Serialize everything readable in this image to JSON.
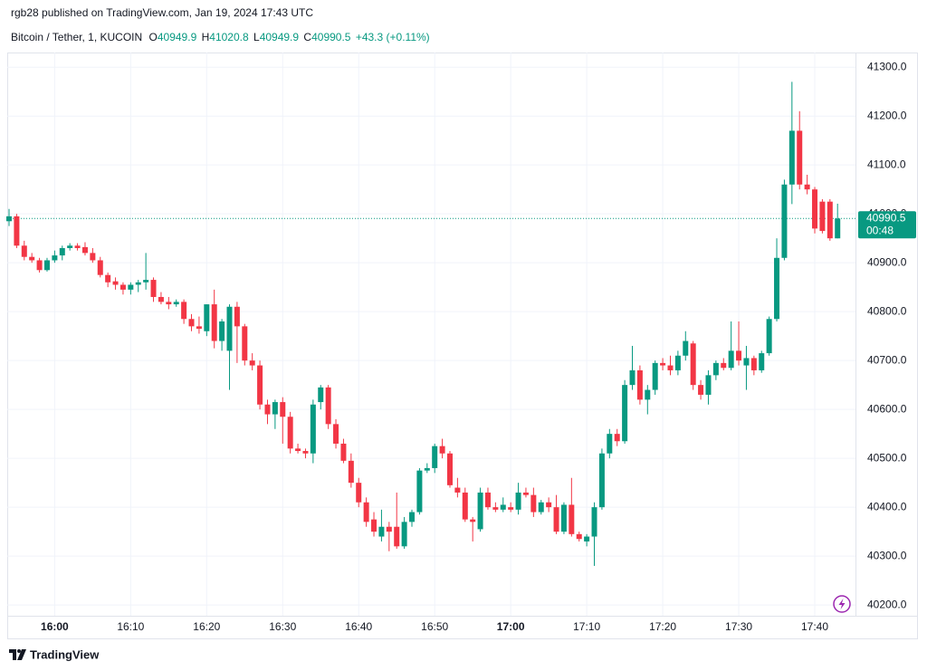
{
  "chart_data": {
    "type": "candlestick",
    "title": "rgb28 published on TradingView.com, Jan 19, 2024 17:43 UTC",
    "symbol": "Bitcoin / Tether, 1, KUCOIN",
    "ohlc_labels": [
      "O",
      "H",
      "L",
      "C"
    ],
    "change_label": "+43.3 (+0.11%)",
    "countdown": "00:48",
    "brand": "TradingView",
    "up_color": "#089981",
    "down_color": "#f23645",
    "grid": true,
    "x": [
      "15:54",
      "15:55",
      "15:56",
      "15:57",
      "15:58",
      "15:59",
      "16:00",
      "16:01",
      "16:02",
      "16:03",
      "16:04",
      "16:05",
      "16:06",
      "16:07",
      "16:08",
      "16:09",
      "16:10",
      "16:11",
      "16:12",
      "16:13",
      "16:14",
      "16:15",
      "16:16",
      "16:17",
      "16:18",
      "16:19",
      "16:20",
      "16:21",
      "16:22",
      "16:23",
      "16:24",
      "16:25",
      "16:26",
      "16:27",
      "16:28",
      "16:29",
      "16:30",
      "16:31",
      "16:32",
      "16:33",
      "16:34",
      "16:35",
      "16:36",
      "16:37",
      "16:38",
      "16:39",
      "16:40",
      "16:41",
      "16:42",
      "16:43",
      "16:44",
      "16:45",
      "16:46",
      "16:47",
      "16:48",
      "16:49",
      "16:50",
      "16:51",
      "16:52",
      "16:53",
      "16:54",
      "16:55",
      "16:56",
      "16:57",
      "16:58",
      "16:59",
      "17:00",
      "17:01",
      "17:02",
      "17:03",
      "17:04",
      "17:05",
      "17:06",
      "17:07",
      "17:08",
      "17:09",
      "17:10",
      "17:11",
      "17:12",
      "17:13",
      "17:14",
      "17:15",
      "17:16",
      "17:17",
      "17:18",
      "17:19",
      "17:20",
      "17:21",
      "17:22",
      "17:23",
      "17:24",
      "17:25",
      "17:26",
      "17:27",
      "17:28",
      "17:29",
      "17:30",
      "17:31",
      "17:32",
      "17:33",
      "17:34",
      "17:35",
      "17:36",
      "17:37",
      "17:38",
      "17:39",
      "17:40",
      "17:41",
      "17:42",
      "17:43"
    ],
    "open": [
      40985,
      40995,
      40935,
      40912,
      40905,
      40885,
      40905,
      40915,
      40930,
      40935,
      40932,
      40920,
      40905,
      40875,
      40862,
      40855,
      40845,
      40855,
      40860,
      40865,
      40830,
      40820,
      40815,
      40820,
      40785,
      40770,
      40760,
      40815,
      40740,
      40720,
      40810,
      40770,
      40700,
      40690,
      40610,
      40590,
      40615,
      40585,
      40520,
      40515,
      40510,
      40615,
      40645,
      40570,
      40530,
      40495,
      40450,
      40410,
      40375,
      40340,
      40360,
      40360,
      40320,
      40370,
      40390,
      40475,
      40480,
      40525,
      40510,
      40440,
      40430,
      40375,
      40355,
      40430,
      40400,
      40395,
      40400,
      40395,
      40430,
      40425,
      40390,
      40410,
      40400,
      40350,
      40405,
      40345,
      40330,
      40340,
      40400,
      40510,
      40550,
      40535,
      40650,
      40680,
      40620,
      40640,
      40695,
      40690,
      40680,
      40710,
      40735,
      40650,
      40630,
      40670,
      40695,
      40685,
      40720,
      40690,
      40705,
      40680,
      40715,
      40785,
      40910,
      41060,
      41170,
      41060,
      41050,
      41025,
      41025,
      40949.9
    ],
    "high": [
      41010,
      41000,
      40945,
      40920,
      40910,
      40910,
      40925,
      40935,
      40940,
      40940,
      40942,
      40930,
      40912,
      40880,
      40870,
      40860,
      40860,
      40865,
      40920,
      40870,
      40840,
      40830,
      40825,
      40825,
      40795,
      40790,
      40815,
      40845,
      40785,
      40815,
      40820,
      40775,
      40715,
      40700,
      40620,
      40620,
      40625,
      40595,
      40530,
      40520,
      40620,
      40650,
      40650,
      40580,
      40540,
      40510,
      40460,
      40420,
      40390,
      40395,
      40370,
      40430,
      40380,
      40395,
      40480,
      40490,
      40530,
      40540,
      40515,
      40460,
      40440,
      40380,
      40440,
      40440,
      40410,
      40420,
      40410,
      40450,
      40440,
      40440,
      40415,
      40420,
      40425,
      40410,
      40460,
      40350,
      40345,
      40410,
      40520,
      40560,
      40560,
      40660,
      40730,
      40690,
      40650,
      40700,
      40705,
      40710,
      40720,
      40760,
      40740,
      40660,
      40680,
      40700,
      40705,
      40780,
      40780,
      40730,
      40710,
      40720,
      40790,
      40950,
      41070,
      41270,
      41210,
      41080,
      41055,
      41030,
      41030,
      41020.8
    ],
    "low": [
      40975,
      40930,
      40905,
      40900,
      40880,
      40882,
      40900,
      40905,
      40925,
      40925,
      40915,
      40900,
      40870,
      40850,
      40845,
      40835,
      40835,
      40840,
      40845,
      40820,
      40815,
      40805,
      40810,
      40775,
      40760,
      40755,
      40750,
      40725,
      40720,
      40640,
      40695,
      40690,
      40680,
      40600,
      40570,
      40560,
      40530,
      40510,
      40510,
      40500,
      40490,
      40600,
      40560,
      40520,
      40490,
      40440,
      40400,
      40360,
      40340,
      40330,
      40310,
      40315,
      40315,
      40360,
      40385,
      40470,
      40470,
      40500,
      40440,
      40420,
      40370,
      40330,
      40350,
      40395,
      40390,
      40390,
      40390,
      40385,
      40420,
      40380,
      40385,
      40390,
      40345,
      40345,
      40340,
      40330,
      40320,
      40280,
      40395,
      40500,
      40525,
      40530,
      40640,
      40610,
      40590,
      40630,
      40680,
      40670,
      40670,
      40700,
      40640,
      40620,
      40610,
      40660,
      40680,
      40680,
      40690,
      40640,
      40670,
      40675,
      40710,
      40780,
      40905,
      41020,
      41050,
      41040,
      40960,
      40960,
      40945,
      40949.9
    ],
    "close": [
      40995,
      40935,
      40912,
      40905,
      40885,
      40905,
      40915,
      40930,
      40935,
      40930,
      40920,
      40905,
      40875,
      40860,
      40855,
      40845,
      40855,
      40860,
      40865,
      40830,
      40820,
      40815,
      40820,
      40785,
      40770,
      40765,
      40815,
      40740,
      40780,
      40810,
      40770,
      40700,
      40690,
      40610,
      40590,
      40615,
      40585,
      40520,
      40515,
      40510,
      40610,
      40645,
      40570,
      40530,
      40495,
      40450,
      40410,
      40370,
      40350,
      40360,
      40350,
      40320,
      40370,
      40390,
      40475,
      40480,
      40525,
      40510,
      40445,
      40430,
      40375,
      40370,
      40430,
      40400,
      40395,
      40405,
      40395,
      40430,
      40425,
      40390,
      40410,
      40400,
      40350,
      40405,
      40345,
      40335,
      40340,
      40400,
      40510,
      40550,
      40535,
      40650,
      40680,
      40620,
      40640,
      40695,
      40690,
      40680,
      40710,
      40740,
      40650,
      40630,
      40670,
      40695,
      40685,
      40720,
      40700,
      40705,
      40680,
      40715,
      40785,
      40910,
      41060,
      41170,
      41060,
      41050,
      40970,
      40965,
      40950,
      40990.5
    ],
    "xlim": [
      "15:54",
      "17:45"
    ],
    "xticks": [
      "16:00",
      "16:10",
      "16:20",
      "16:30",
      "16:40",
      "16:50",
      "17:00",
      "17:10",
      "17:20",
      "17:30",
      "17:40"
    ],
    "ylim": [
      40178,
      41330
    ],
    "yticks": [
      {
        "value": 40200,
        "label": "40200.0"
      },
      {
        "value": 40300,
        "label": "40300.0"
      },
      {
        "value": 40400,
        "label": "40400.0"
      },
      {
        "value": 40500,
        "label": "40500.0"
      },
      {
        "value": 40600,
        "label": "40600.0"
      },
      {
        "value": 40700,
        "label": "40700.0"
      },
      {
        "value": 40800,
        "label": "40800.0"
      },
      {
        "value": 40900,
        "label": "40900.0"
      },
      {
        "value": 41000,
        "label": "41000.0"
      },
      {
        "value": 41100,
        "label": "41100.0"
      },
      {
        "value": 41200,
        "label": "41200.0"
      },
      {
        "value": 41300,
        "label": "41300.0"
      }
    ]
  }
}
